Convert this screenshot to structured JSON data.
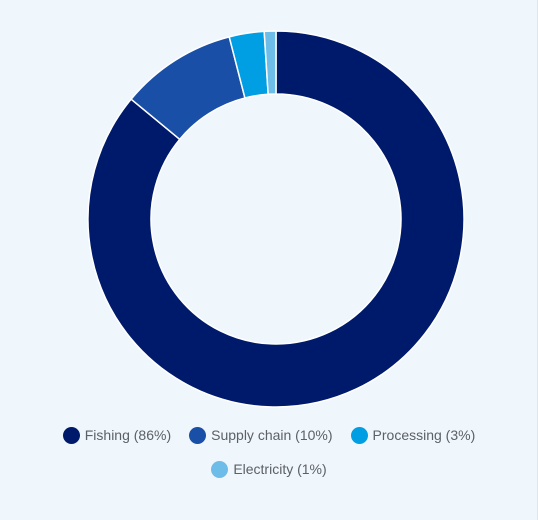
{
  "chart_data": {
    "type": "pie",
    "variant": "donut",
    "title": "",
    "slices": [
      {
        "label": "Fishing (86%)",
        "name": "Fishing",
        "value": 86,
        "color": "#001a6b"
      },
      {
        "label": "Supply chain (10%)",
        "name": "Supply chain",
        "value": 10,
        "color": "#1a4fa8"
      },
      {
        "label": "Processing (3%)",
        "name": "Processing",
        "value": 3,
        "color": "#009fe3"
      },
      {
        "label": "Electricity (1%)",
        "name": "Electricity",
        "value": 1,
        "color": "#6ebde8"
      }
    ],
    "legend_position": "bottom"
  },
  "colors": {
    "background": "#eff6fc",
    "separator": "#ffffff",
    "legend_text": "#5b6166"
  }
}
